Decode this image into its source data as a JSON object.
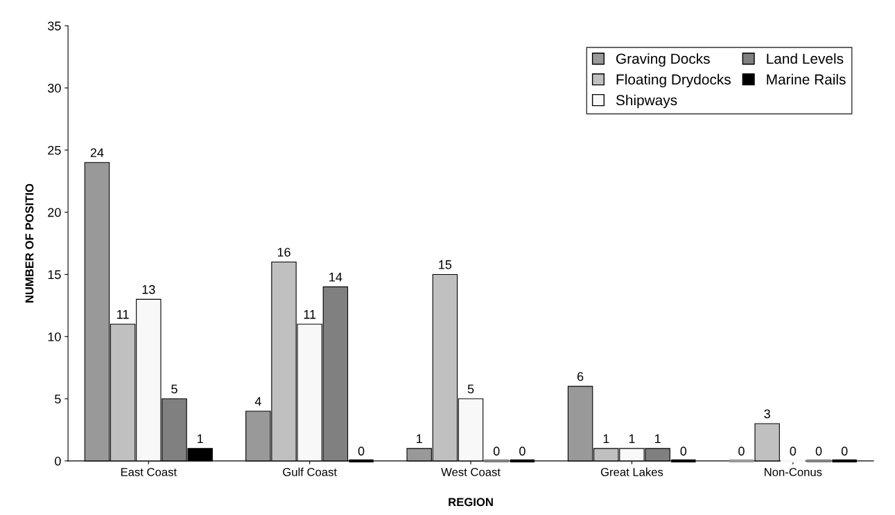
{
  "chart_data": {
    "type": "bar",
    "xlabel": "REGION",
    "ylabel": "NUMBER OF POSITIO",
    "categories": [
      "East Coast",
      "Gulf Coast",
      "West Coast",
      "Great Lakes",
      "Non-Conus"
    ],
    "series": [
      {
        "name": "Graving Docks",
        "color": "#999999",
        "values": [
          24,
          4,
          1,
          6,
          0
        ]
      },
      {
        "name": "Floating Drydocks",
        "color": "#c0c0c0",
        "values": [
          11,
          16,
          15,
          1,
          3
        ]
      },
      {
        "name": "Shipways",
        "color": "#f8f8f8",
        "values": [
          13,
          11,
          5,
          1,
          0
        ]
      },
      {
        "name": "Land Levels",
        "color": "#808080",
        "values": [
          5,
          14,
          0,
          1,
          0
        ]
      },
      {
        "name": "Marine Rails",
        "color": "#000000",
        "values": [
          1,
          0,
          0,
          0,
          0
        ]
      }
    ],
    "ylim": [
      0,
      35
    ],
    "yticks": [
      0,
      5,
      10,
      15,
      20,
      25,
      30,
      35
    ],
    "data_labels": true,
    "legend": "top right",
    "grid": false
  }
}
